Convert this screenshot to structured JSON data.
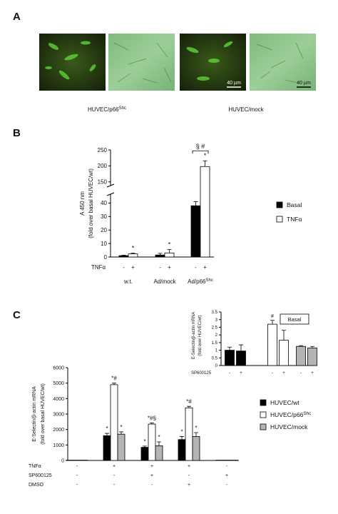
{
  "panel_labels": [
    "A",
    "B",
    "C"
  ],
  "panel_a": {
    "captions": [
      {
        "text": "HUVEC/p66",
        "superscript": "Shc"
      },
      {
        "text": "HUVEC/mock"
      }
    ],
    "scale_bar_labels": [
      "40 µm",
      "40 µm"
    ]
  },
  "chart_data": [
    {
      "type": "bar",
      "ylabel": [
        "A 450 nm",
        "(fold over basal HUVEC/wt)"
      ],
      "categories": [
        "w.t.",
        "Ad/mock",
        "Ad/p66"
      ],
      "category_superscripts": [
        null,
        null,
        "Shc"
      ],
      "ylim": [
        0,
        250
      ],
      "ybreak": [
        45,
        145
      ],
      "yticks": [
        0,
        10,
        20,
        30,
        40,
        150,
        200,
        250
      ],
      "series": [
        {
          "name": "Basal",
          "color": "#000000",
          "values": [
            1,
            1.5,
            38
          ],
          "errors": [
            0.3,
            1.2,
            3
          ],
          "marks": [
            null,
            null,
            null
          ]
        },
        {
          "name": "TNFα",
          "color": "#ffffff",
          "values": [
            2.3,
            3,
            198
          ],
          "errors": [
            0.5,
            2.5,
            18
          ],
          "marks": [
            "*",
            "*",
            "*"
          ]
        }
      ],
      "group_marks": [
        null,
        null,
        "§ #"
      ],
      "conditions": [
        {
          "name": "TNFα",
          "values": [
            "-",
            "+",
            "-",
            "+",
            "-",
            "+"
          ]
        }
      ],
      "legend": "right"
    },
    {
      "type": "bar",
      "ylabel": [
        "E-Selectin/β-actin mRNA",
        "(fold over basal HUVEC/wt)"
      ],
      "categories": [
        null,
        null,
        null,
        null,
        null
      ],
      "ylim": [
        0,
        6000
      ],
      "yticks": [
        0,
        1000,
        2000,
        3000,
        4000,
        5000,
        6000
      ],
      "series": [
        {
          "name": "HUVEC/wt",
          "color": "#000000",
          "values": [
            20,
            1600,
            850,
            1350,
            20
          ],
          "errors": [
            0,
            150,
            80,
            200,
            0
          ],
          "marks": [
            null,
            "*",
            "*",
            "*",
            null
          ]
        },
        {
          "name": "HUVEC/p66",
          "name_superscript": "Shc",
          "color": "#ffffff",
          "values": [
            20,
            4900,
            2350,
            3400,
            20
          ],
          "errors": [
            0,
            100,
            80,
            100,
            0
          ],
          "marks": [
            null,
            "*#",
            "*#§",
            "*#",
            null
          ]
        },
        {
          "name": "HUVEC/mock",
          "color": "#b4b4b4",
          "values": [
            20,
            1700,
            950,
            1550,
            20
          ],
          "errors": [
            0,
            150,
            250,
            250,
            0
          ],
          "marks": [
            null,
            "*",
            "*",
            "*",
            null
          ]
        }
      ],
      "conditions": [
        {
          "name": "TNFα",
          "values": [
            "-",
            "+",
            "+",
            "+",
            "-"
          ]
        },
        {
          "name": "SP600125",
          "values": [
            "-",
            "-",
            "+",
            "-",
            "+"
          ]
        },
        {
          "name": "DMSO",
          "values": [
            "-",
            "-",
            "-",
            "+",
            "-"
          ]
        }
      ],
      "legend": "right"
    },
    {
      "type": "grouped-pairs",
      "ylabel": [
        "E-Selectin/β-actin mRNA",
        "(fold over HUVEC/wt)"
      ],
      "ylim": [
        0,
        3.5
      ],
      "yticks": [
        0,
        0.5,
        1,
        1.5,
        2,
        2.5,
        3,
        3.5
      ],
      "series": [
        {
          "color": "#000000",
          "values": [
            1.0,
            0.95
          ],
          "errors": [
            0.2,
            0.4
          ],
          "marks": [
            null,
            null
          ]
        },
        {
          "color": "#ffffff",
          "values": [
            2.7,
            1.65
          ],
          "errors": [
            0.25,
            0.65
          ],
          "marks": [
            "#",
            null
          ]
        },
        {
          "color": "#b4b4b4",
          "values": [
            1.25,
            1.15
          ],
          "errors": [
            0.05,
            0.1
          ],
          "marks": [
            null,
            null
          ]
        }
      ],
      "box_label": "Basal",
      "conditions": [
        {
          "name": "SP600125",
          "values": [
            "-",
            "+",
            "-",
            "+",
            "-",
            "+"
          ]
        }
      ]
    }
  ]
}
